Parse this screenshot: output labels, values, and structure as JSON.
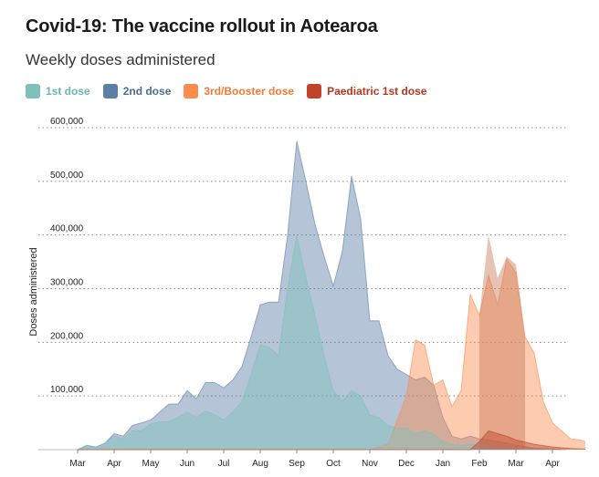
{
  "header": {
    "title": "Covid-19: The vaccine rollout in Aotearoa",
    "subtitle": "Weekly doses administered"
  },
  "chart_data": {
    "type": "area",
    "title": "Covid-19: The vaccine rollout in Aotearoa",
    "subtitle": "Weekly doses administered",
    "xlabel": "",
    "ylabel": "Doses administered",
    "ylim": [
      0,
      600000
    ],
    "yticks": [
      100000,
      200000,
      300000,
      400000,
      500000,
      600000
    ],
    "ytick_labels": [
      "100,000",
      "200,000",
      "300,000",
      "400,000",
      "500,000",
      "600,000"
    ],
    "xtick_labels": [
      "Mar",
      "Apr",
      "May",
      "Jun",
      "Jul",
      "Aug",
      "Sep",
      "Oct",
      "Nov",
      "Dec",
      "Jan",
      "Feb",
      "Mar",
      "Apr"
    ],
    "grid": true,
    "legend_position": "top-left",
    "series": [
      {
        "name": "2nd dose",
        "color": "#5b7fa6",
        "points": [
          [
            0.0,
            0
          ],
          [
            0.25,
            8000
          ],
          [
            0.5,
            5000
          ],
          [
            0.75,
            12000
          ],
          [
            1.0,
            30000
          ],
          [
            1.25,
            25000
          ],
          [
            1.5,
            45000
          ],
          [
            1.75,
            50000
          ],
          [
            2.0,
            55000
          ],
          [
            2.25,
            70000
          ],
          [
            2.5,
            85000
          ],
          [
            2.75,
            85000
          ],
          [
            3.0,
            110000
          ],
          [
            3.25,
            95000
          ],
          [
            3.5,
            125000
          ],
          [
            3.75,
            125000
          ],
          [
            4.0,
            115000
          ],
          [
            4.25,
            130000
          ],
          [
            4.5,
            155000
          ],
          [
            4.75,
            210000
          ],
          [
            5.0,
            270000
          ],
          [
            5.25,
            275000
          ],
          [
            5.5,
            275000
          ],
          [
            5.75,
            400000
          ],
          [
            6.0,
            575000
          ],
          [
            6.25,
            500000
          ],
          [
            6.5,
            420000
          ],
          [
            6.75,
            360000
          ],
          [
            7.0,
            305000
          ],
          [
            7.25,
            370000
          ],
          [
            7.5,
            510000
          ],
          [
            7.75,
            430000
          ],
          [
            8.0,
            240000
          ],
          [
            8.25,
            240000
          ],
          [
            8.5,
            175000
          ],
          [
            8.75,
            150000
          ],
          [
            9.0,
            140000
          ],
          [
            9.25,
            130000
          ],
          [
            9.5,
            135000
          ],
          [
            9.75,
            120000
          ],
          [
            10.0,
            60000
          ],
          [
            10.25,
            25000
          ],
          [
            10.5,
            20000
          ],
          [
            10.75,
            25000
          ],
          [
            11.0,
            20000
          ],
          [
            11.25,
            18000
          ],
          [
            11.5,
            15000
          ],
          [
            11.75,
            12000
          ],
          [
            12.0,
            8000
          ],
          [
            12.25,
            6000
          ],
          [
            12.5,
            3000
          ],
          [
            12.75,
            2000
          ],
          [
            13.0,
            1000
          ],
          [
            13.25,
            500
          ]
        ]
      },
      {
        "name": "3rd/Booster dose",
        "color": "#fb8c4e",
        "points": [
          [
            0.0,
            0
          ],
          [
            8.0,
            0
          ],
          [
            8.5,
            10000
          ],
          [
            9.0,
            100000
          ],
          [
            9.25,
            205000
          ],
          [
            9.5,
            195000
          ],
          [
            9.75,
            120000
          ],
          [
            10.0,
            130000
          ],
          [
            10.25,
            80000
          ],
          [
            10.5,
            110000
          ],
          [
            10.75,
            290000
          ],
          [
            11.0,
            250000
          ],
          [
            11.25,
            325000
          ],
          [
            11.5,
            270000
          ],
          [
            11.75,
            355000
          ],
          [
            12.0,
            330000
          ],
          [
            12.25,
            210000
          ],
          [
            12.5,
            180000
          ],
          [
            12.75,
            90000
          ],
          [
            13.0,
            50000
          ],
          [
            13.25,
            35000
          ],
          [
            13.5,
            20000
          ],
          [
            13.75,
            18000
          ],
          [
            13.9,
            15000
          ]
        ]
      },
      {
        "name": "1st dose",
        "color": "#7fc0bb",
        "points": [
          [
            0.0,
            0
          ],
          [
            0.25,
            8000
          ],
          [
            0.5,
            5000
          ],
          [
            0.75,
            12000
          ],
          [
            1.0,
            25000
          ],
          [
            1.25,
            20000
          ],
          [
            1.5,
            35000
          ],
          [
            1.75,
            35000
          ],
          [
            2.0,
            48000
          ],
          [
            2.25,
            52000
          ],
          [
            2.5,
            52000
          ],
          [
            2.75,
            60000
          ],
          [
            3.0,
            70000
          ],
          [
            3.25,
            60000
          ],
          [
            3.5,
            72000
          ],
          [
            3.75,
            65000
          ],
          [
            4.0,
            55000
          ],
          [
            4.25,
            70000
          ],
          [
            4.5,
            90000
          ],
          [
            4.75,
            140000
          ],
          [
            5.0,
            195000
          ],
          [
            5.25,
            190000
          ],
          [
            5.5,
            175000
          ],
          [
            5.75,
            300000
          ],
          [
            6.0,
            400000
          ],
          [
            6.25,
            320000
          ],
          [
            6.5,
            250000
          ],
          [
            6.75,
            175000
          ],
          [
            7.0,
            110000
          ],
          [
            7.25,
            90000
          ],
          [
            7.5,
            110000
          ],
          [
            7.75,
            100000
          ],
          [
            8.0,
            65000
          ],
          [
            8.25,
            60000
          ],
          [
            8.5,
            45000
          ],
          [
            8.75,
            40000
          ],
          [
            9.0,
            40000
          ],
          [
            9.25,
            30000
          ],
          [
            9.5,
            35000
          ],
          [
            9.75,
            30000
          ],
          [
            10.0,
            15000
          ],
          [
            10.25,
            10000
          ],
          [
            10.5,
            8000
          ],
          [
            10.75,
            10000
          ],
          [
            11.0,
            8000
          ],
          [
            11.25,
            6000
          ],
          [
            11.5,
            5000
          ],
          [
            11.75,
            4000
          ],
          [
            12.0,
            3000
          ],
          [
            12.5,
            2000
          ],
          [
            13.0,
            1000
          ]
        ]
      },
      {
        "name": "Paediatric 1st dose",
        "color": "#c0432a",
        "points": [
          [
            0.0,
            0
          ],
          [
            10.75,
            0
          ],
          [
            11.0,
            15000
          ],
          [
            11.25,
            35000
          ],
          [
            11.5,
            30000
          ],
          [
            11.75,
            25000
          ],
          [
            12.0,
            18000
          ],
          [
            12.5,
            10000
          ],
          [
            13.0,
            5000
          ],
          [
            13.5,
            2000
          ],
          [
            13.9,
            1000
          ]
        ]
      }
    ],
    "draw_order": [
      "2nd dose",
      "3rd/Booster dose",
      "1st dose",
      "Paediatric 1st dose"
    ],
    "booster_overlap_peaks": [
      [
        11.25,
        400000
      ],
      [
        11.5,
        320000
      ],
      [
        11.75,
        360000
      ],
      [
        12.0,
        345000
      ]
    ]
  },
  "legend": {
    "items": [
      {
        "label": "1st dose",
        "color": "#7fc0bb",
        "text_color": "#6ab5b0"
      },
      {
        "label": "2nd dose",
        "color": "#5b7fa6",
        "text_color": "#4a6f96"
      },
      {
        "label": "3rd/Booster dose",
        "color": "#fb8c4e",
        "text_color": "#f47a35"
      },
      {
        "label": "Paediatric 1st dose",
        "color": "#c0432a",
        "text_color": "#b8361e"
      }
    ]
  }
}
